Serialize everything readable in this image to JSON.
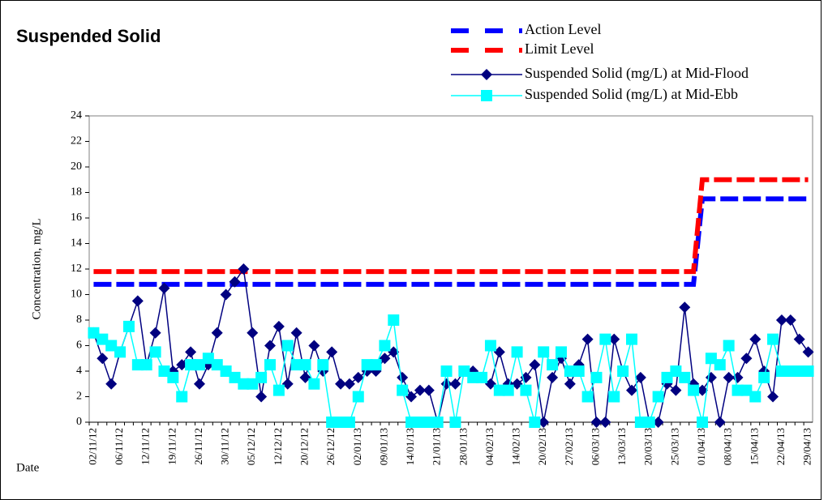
{
  "chart_data": {
    "type": "line",
    "title": "Suspended Solid",
    "ylabel": "Concentration, mg/L",
    "xlabel": "Date",
    "categories": [
      "02/11/12",
      null,
      null,
      "06/11/12",
      null,
      null,
      "12/11/12",
      null,
      null,
      "19/11/12",
      null,
      null,
      "26/11/12",
      null,
      null,
      "30/11/12",
      null,
      null,
      "05/12/12",
      null,
      null,
      "12/12/12",
      null,
      null,
      "20/12/12",
      null,
      null,
      "26/12/12",
      null,
      null,
      "02/01/13",
      null,
      null,
      "09/01/13",
      null,
      null,
      "14/01/13",
      null,
      null,
      "21/01/13",
      null,
      null,
      "28/01/13",
      null,
      null,
      "04/02/13",
      null,
      null,
      "14/02/13",
      null,
      null,
      "20/02/13",
      null,
      null,
      "27/02/13",
      null,
      null,
      "06/03/13",
      null,
      null,
      "13/03/13",
      null,
      null,
      "20/03/13",
      null,
      null,
      "25/03/13",
      null,
      null,
      "01/04/13",
      null,
      null,
      "08/04/13",
      null,
      null,
      "15/04/13",
      null,
      null,
      "22/04/13",
      null,
      null,
      "29/04/13"
    ],
    "ylim": [
      0,
      24
    ],
    "yticks": [
      0,
      2,
      4,
      6,
      8,
      10,
      12,
      14,
      16,
      18,
      20,
      22,
      24
    ],
    "grid": false,
    "series": [
      {
        "name": "Action Level",
        "color": "#0000ff",
        "style": "dashed",
        "marker": "none",
        "values": [
          10.8,
          10.8,
          10.8,
          10.8,
          10.8,
          10.8,
          10.8,
          10.8,
          10.8,
          10.8,
          10.8,
          10.8,
          10.8,
          10.8,
          10.8,
          10.8,
          10.8,
          10.8,
          10.8,
          10.8,
          10.8,
          10.8,
          10.8,
          10.8,
          10.8,
          10.8,
          10.8,
          10.8,
          10.8,
          10.8,
          10.8,
          10.8,
          10.8,
          10.8,
          10.8,
          10.8,
          10.8,
          10.8,
          10.8,
          10.8,
          10.8,
          10.8,
          10.8,
          10.8,
          10.8,
          10.8,
          10.8,
          10.8,
          10.8,
          10.8,
          10.8,
          10.8,
          10.8,
          10.8,
          10.8,
          10.8,
          10.8,
          10.8,
          10.8,
          10.8,
          10.8,
          10.8,
          10.8,
          10.8,
          10.8,
          10.8,
          10.8,
          10.8,
          10.8,
          17.5,
          17.5,
          17.5,
          17.5,
          17.5,
          17.5,
          17.5,
          17.5,
          17.5,
          17.5,
          17.5,
          17.5,
          17.5
        ]
      },
      {
        "name": "Limit Level",
        "color": "#ff0000",
        "style": "dashed",
        "marker": "none",
        "values": [
          11.8,
          11.8,
          11.8,
          11.8,
          11.8,
          11.8,
          11.8,
          11.8,
          11.8,
          11.8,
          11.8,
          11.8,
          11.8,
          11.8,
          11.8,
          11.8,
          11.8,
          11.8,
          11.8,
          11.8,
          11.8,
          11.8,
          11.8,
          11.8,
          11.8,
          11.8,
          11.8,
          11.8,
          11.8,
          11.8,
          11.8,
          11.8,
          11.8,
          11.8,
          11.8,
          11.8,
          11.8,
          11.8,
          11.8,
          11.8,
          11.8,
          11.8,
          11.8,
          11.8,
          11.8,
          11.8,
          11.8,
          11.8,
          11.8,
          11.8,
          11.8,
          11.8,
          11.8,
          11.8,
          11.8,
          11.8,
          11.8,
          11.8,
          11.8,
          11.8,
          11.8,
          11.8,
          11.8,
          11.8,
          11.8,
          11.8,
          11.8,
          11.8,
          11.8,
          19,
          19,
          19,
          19,
          19,
          19,
          19,
          19,
          19,
          19,
          19,
          19,
          19
        ]
      },
      {
        "name": "Suspended Solid (mg/L) at Mid-Flood",
        "color": "#000080",
        "style": "solid",
        "marker": "diamond",
        "values": [
          7,
          5,
          3,
          5.5,
          7.5,
          9.5,
          4.5,
          7,
          10.5,
          4,
          4.5,
          5.5,
          3,
          4.5,
          7,
          10,
          11,
          12,
          7,
          2,
          6,
          7.5,
          3,
          7,
          3.5,
          6,
          4,
          5.5,
          3,
          3,
          3.5,
          4,
          4,
          5,
          5.5,
          3.5,
          2,
          2.5,
          2.5,
          0,
          3,
          3,
          4,
          4,
          3.5,
          3,
          5.5,
          3,
          3,
          3.5,
          4.5,
          0,
          3.5,
          5,
          3,
          4.5,
          6.5,
          0,
          0,
          6.5,
          4,
          2.5,
          3.5,
          0,
          0,
          3,
          2.5,
          9,
          3,
          2.5,
          3.5,
          0,
          3.5,
          3.5,
          5,
          6.5,
          4,
          2,
          8,
          8,
          6.5,
          5.5
        ]
      },
      {
        "name": "Suspended Solid (mg/L) at Mid-Ebb",
        "color": "#00ffff",
        "style": "solid",
        "marker": "square",
        "values": [
          7,
          6.5,
          6,
          5.5,
          7.5,
          4.5,
          4.5,
          5.5,
          4,
          3.5,
          2,
          4.5,
          4.5,
          5,
          4.5,
          4,
          3.5,
          3,
          3,
          3.5,
          4.5,
          2.5,
          6,
          4.5,
          4.5,
          3,
          4.5,
          0,
          0,
          0,
          2,
          4.5,
          4.5,
          6,
          8,
          2.5,
          0,
          0,
          0,
          0,
          4,
          0,
          4,
          3.5,
          3.5,
          6,
          2.5,
          2.5,
          5.5,
          2.5,
          0,
          5.5,
          4.5,
          5.5,
          4,
          4,
          2,
          3.5,
          6.5,
          2,
          4,
          6.5,
          0,
          0,
          2,
          3.5,
          4,
          3.5,
          2.5,
          0,
          5,
          4.5,
          6,
          2.5,
          2.5,
          2,
          3.5,
          6.5,
          4,
          4,
          4,
          4
        ]
      }
    ]
  }
}
